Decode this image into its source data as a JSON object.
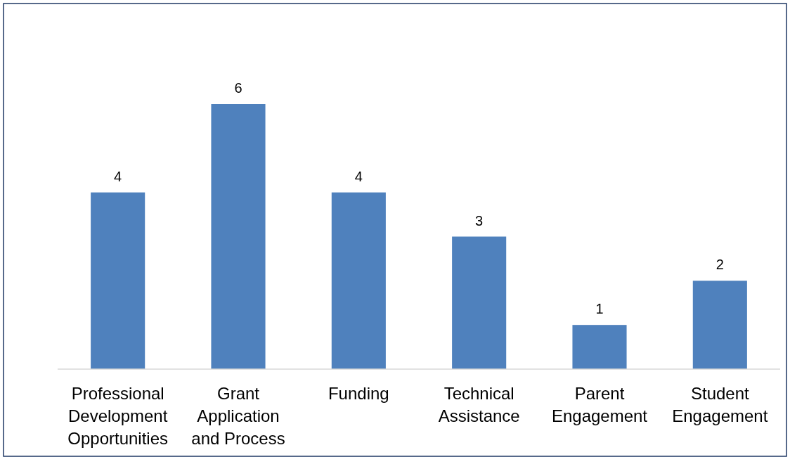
{
  "chart_data": {
    "type": "bar",
    "categories": [
      "Professional Development Opportunities",
      "Grant Application and Process",
      "Funding",
      "Technical Assistance",
      "Parent Engagement",
      "Student Engagement"
    ],
    "values": [
      4,
      6,
      4,
      3,
      1,
      2
    ],
    "color": "#4f81bd",
    "data_labels": true
  }
}
